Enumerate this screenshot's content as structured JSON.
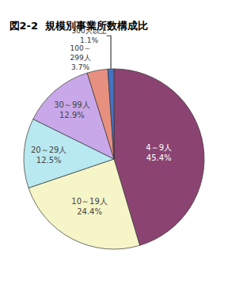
{
  "chart_data": {
    "type": "pie",
    "title": "図2-2  規模別事業所数構成比",
    "categories": [
      "4～9人\n45.4%",
      "10～19人\n24.4%",
      "20～29人\n12.5%",
      "30～99人\n12.9%",
      "100～\n299人\n3.7%",
      "300人以上\n1.1%"
    ],
    "values": [
      45.4,
      24.4,
      12.5,
      12.9,
      3.7,
      1.1
    ],
    "colors": [
      "#8B4472",
      "#F5F5C8",
      "#B8E8F0",
      "#C8A8E8",
      "#E89080",
      "#4472C4"
    ]
  }
}
